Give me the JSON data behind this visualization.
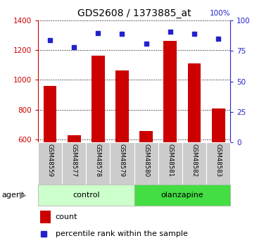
{
  "title": "GDS2608 / 1373885_at",
  "samples": [
    "GSM48559",
    "GSM48577",
    "GSM48578",
    "GSM48579",
    "GSM48580",
    "GSM48581",
    "GSM48582",
    "GSM48583"
  ],
  "counts": [
    960,
    625,
    1165,
    1065,
    655,
    1265,
    1110,
    808
  ],
  "percentile_ranks": [
    84,
    78,
    90,
    89,
    81,
    91,
    89,
    85
  ],
  "ylim_left": [
    580,
    1400
  ],
  "ylim_right": [
    0,
    100
  ],
  "yticks_left": [
    600,
    800,
    1000,
    1200,
    1400
  ],
  "yticks_right": [
    0,
    25,
    50,
    75,
    100
  ],
  "bar_color": "#cc0000",
  "dot_color": "#2222cc",
  "control_bg": "#ccffcc",
  "olanzapine_bg": "#44dd44",
  "tick_bg": "#cccccc",
  "legend_count": "count",
  "legend_percentile": "percentile rank within the sample"
}
